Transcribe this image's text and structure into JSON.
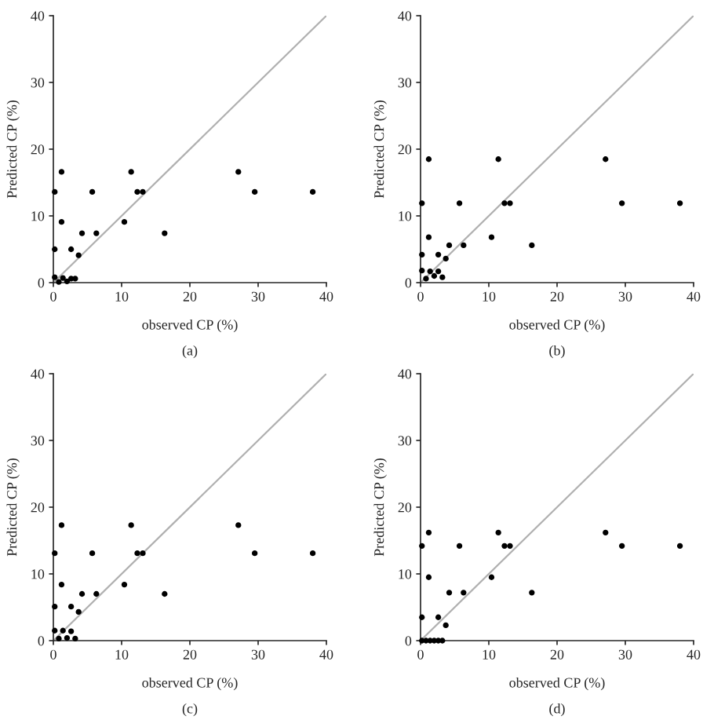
{
  "chart_data": [
    {
      "type": "scatter",
      "xlabel": "observed CP (%)",
      "ylabel": "Predicted CP (%)",
      "annotations": [
        "(a)"
      ],
      "xlim": [
        0,
        40
      ],
      "ylim": [
        0,
        40
      ],
      "xticks": [
        0,
        10,
        20,
        30,
        40
      ],
      "yticks": [
        0,
        10,
        20,
        30,
        40
      ],
      "grid": false,
      "series": [
        {
          "color": "#000000",
          "marker": "circle",
          "x": [
            0.2,
            0.2,
            1.2,
            1.2,
            2.6,
            3.7,
            4.2,
            5.7,
            6.3,
            10.4,
            11.4,
            12.3,
            13.1,
            16.3,
            27.1,
            29.5,
            38.0,
            0.2,
            0.8,
            1.4,
            2.0,
            2.6,
            3.2
          ],
          "values": [
            13.6,
            5.0,
            16.6,
            9.1,
            5.0,
            4.1,
            7.4,
            13.6,
            7.4,
            9.1,
            16.6,
            13.6,
            13.6,
            7.4,
            16.6,
            13.6,
            13.6,
            0.8,
            0.1,
            0.7,
            0.2,
            0.6,
            0.6
          ]
        },
        {
          "type": "line",
          "marker": "none",
          "color": "#b0b0b0",
          "x": [
            0,
            40
          ],
          "values": [
            0,
            40
          ]
        }
      ]
    },
    {
      "type": "scatter",
      "xlabel": "observed CP (%)",
      "ylabel": "Predicted CP (%)",
      "annotations": [
        "(b)"
      ],
      "xlim": [
        0,
        40
      ],
      "ylim": [
        0,
        40
      ],
      "xticks": [
        0,
        10,
        20,
        30,
        40
      ],
      "yticks": [
        0,
        10,
        20,
        30,
        40
      ],
      "grid": false,
      "series": [
        {
          "color": "#000000",
          "marker": "circle",
          "x": [
            0.2,
            0.2,
            1.2,
            1.2,
            2.6,
            3.7,
            4.2,
            5.7,
            6.3,
            10.4,
            11.4,
            12.3,
            13.1,
            16.3,
            27.1,
            29.5,
            38.0,
            0.2,
            0.8,
            1.4,
            2.0,
            2.6,
            3.2
          ],
          "values": [
            11.9,
            4.2,
            18.5,
            6.8,
            4.2,
            3.6,
            5.6,
            11.9,
            5.6,
            6.8,
            18.5,
            11.9,
            11.9,
            5.6,
            18.5,
            11.9,
            11.9,
            1.8,
            0.6,
            1.7,
            1.0,
            1.7,
            0.8
          ]
        },
        {
          "type": "line",
          "marker": "none",
          "color": "#b0b0b0",
          "x": [
            0,
            40
          ],
          "values": [
            0,
            40
          ]
        }
      ]
    },
    {
      "type": "scatter",
      "xlabel": "observed CP (%)",
      "ylabel": "Predicted CP (%)",
      "annotations": [
        "(c)"
      ],
      "xlim": [
        0,
        40
      ],
      "ylim": [
        0,
        40
      ],
      "xticks": [
        0,
        10,
        20,
        30,
        40
      ],
      "yticks": [
        0,
        10,
        20,
        30,
        40
      ],
      "grid": false,
      "series": [
        {
          "color": "#000000",
          "marker": "circle",
          "x": [
            0.2,
            0.2,
            1.2,
            1.2,
            2.6,
            3.7,
            4.2,
            5.7,
            6.3,
            10.4,
            11.4,
            12.3,
            13.1,
            16.3,
            27.1,
            29.5,
            38.0,
            0.2,
            0.8,
            1.4,
            2.0,
            2.6,
            3.2
          ],
          "values": [
            13.1,
            5.1,
            17.3,
            8.4,
            5.1,
            4.3,
            7.0,
            13.1,
            7.0,
            8.4,
            17.3,
            13.1,
            13.1,
            7.0,
            17.3,
            13.1,
            13.1,
            1.5,
            0.3,
            1.5,
            0.4,
            1.4,
            0.3
          ]
        },
        {
          "type": "line",
          "marker": "none",
          "color": "#b0b0b0",
          "x": [
            0,
            40
          ],
          "values": [
            0,
            40
          ]
        }
      ]
    },
    {
      "type": "scatter",
      "xlabel": "observed CP (%)",
      "ylabel": "Predicted CP (%)",
      "annotations": [
        "(d)"
      ],
      "xlim": [
        0,
        40
      ],
      "ylim": [
        0,
        40
      ],
      "xticks": [
        0,
        10,
        20,
        30,
        40
      ],
      "yticks": [
        0,
        10,
        20,
        30,
        40
      ],
      "grid": false,
      "series": [
        {
          "color": "#000000",
          "marker": "circle",
          "x": [
            0.2,
            0.2,
            1.2,
            1.2,
            2.6,
            3.7,
            4.2,
            5.7,
            6.3,
            10.4,
            11.4,
            12.3,
            13.1,
            16.3,
            27.1,
            29.5,
            38.0,
            0.2,
            0.8,
            1.4,
            2.0,
            2.6,
            3.2
          ],
          "values": [
            14.2,
            3.5,
            16.2,
            9.5,
            3.5,
            2.3,
            7.2,
            14.2,
            7.2,
            9.5,
            16.2,
            14.2,
            14.2,
            7.2,
            16.2,
            14.2,
            14.2,
            0,
            0,
            0,
            0,
            0,
            0
          ]
        },
        {
          "type": "line",
          "marker": "none",
          "color": "#b0b0b0",
          "x": [
            0,
            40
          ],
          "values": [
            0,
            40
          ]
        }
      ]
    }
  ]
}
